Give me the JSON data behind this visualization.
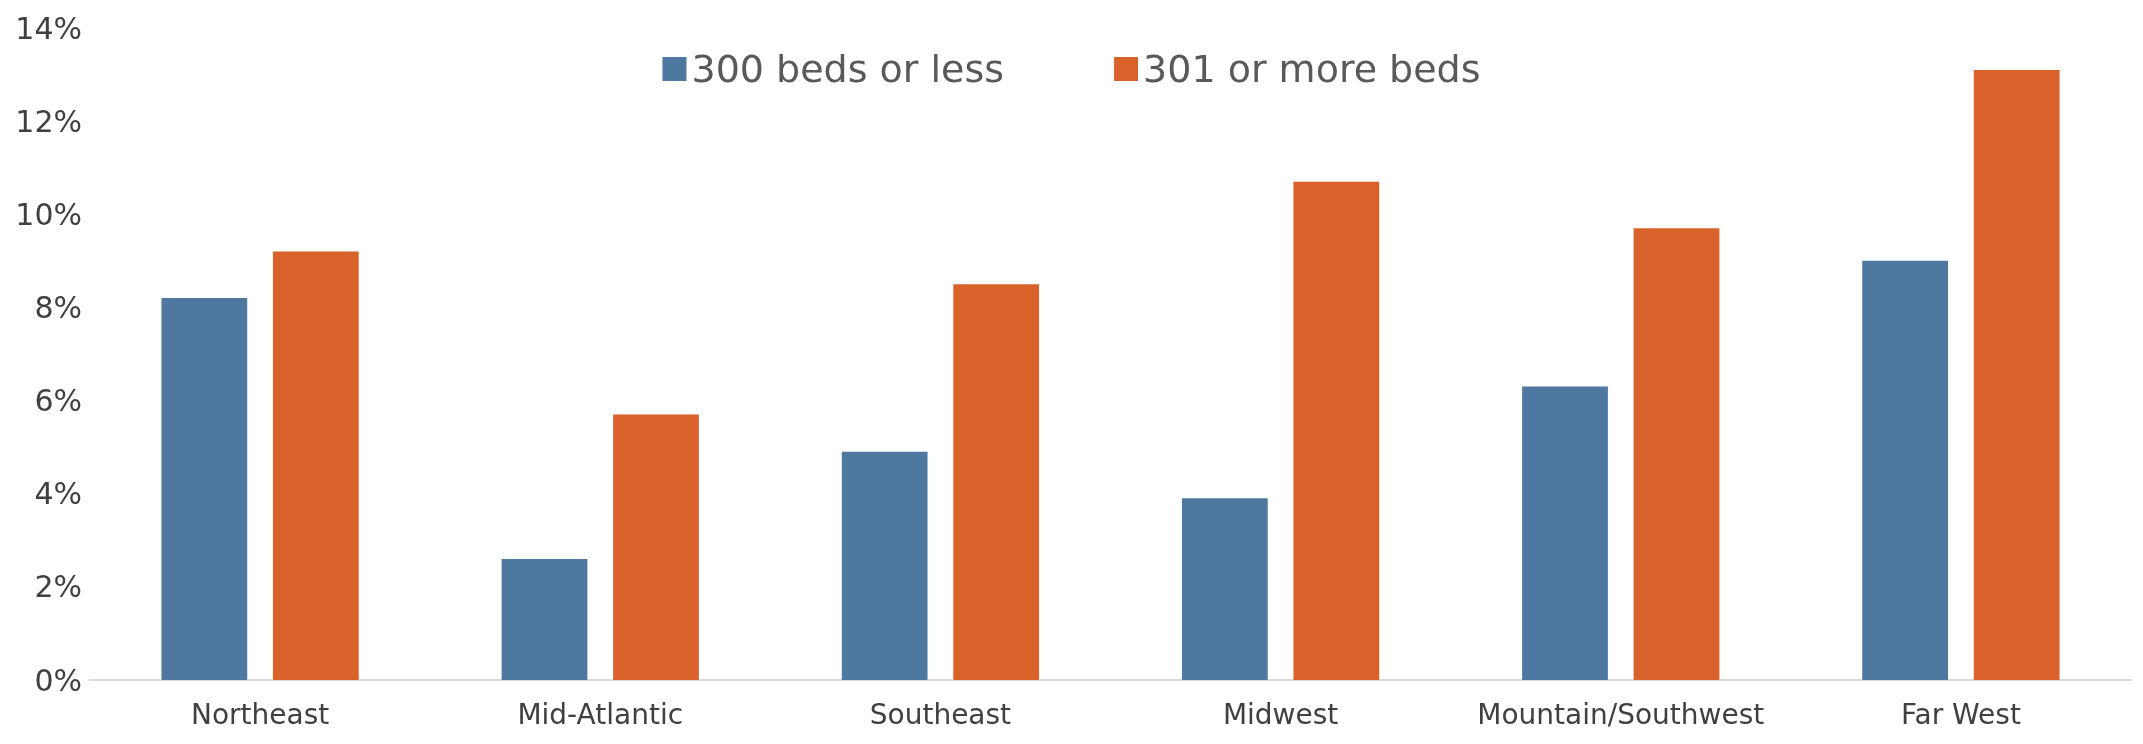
{
  "chart_data": {
    "type": "bar",
    "categories": [
      "Northeast",
      "Mid-Atlantic",
      "Southeast",
      "Midwest",
      "Mountain/Southwest",
      "Far West"
    ],
    "series": [
      {
        "name": "300 beds or less",
        "color": "#4e78a0",
        "values": [
          8.2,
          2.6,
          4.9,
          3.9,
          6.3,
          9.0
        ]
      },
      {
        "name": "301 or more beds",
        "color": "#d9622b",
        "values": [
          9.2,
          5.7,
          8.5,
          10.7,
          9.7,
          13.1
        ]
      }
    ],
    "ylim": [
      0,
      14
    ],
    "yticks": [
      {
        "value": 0,
        "label": "0%"
      },
      {
        "value": 2,
        "label": "2%"
      },
      {
        "value": 4,
        "label": "4%"
      },
      {
        "value": 6,
        "label": "6%"
      },
      {
        "value": 8,
        "label": "8%"
      },
      {
        "value": 10,
        "label": "10%"
      },
      {
        "value": 12,
        "label": "12%"
      },
      {
        "value": 14,
        "label": "14%"
      }
    ],
    "grid": false,
    "legend": "top"
  }
}
